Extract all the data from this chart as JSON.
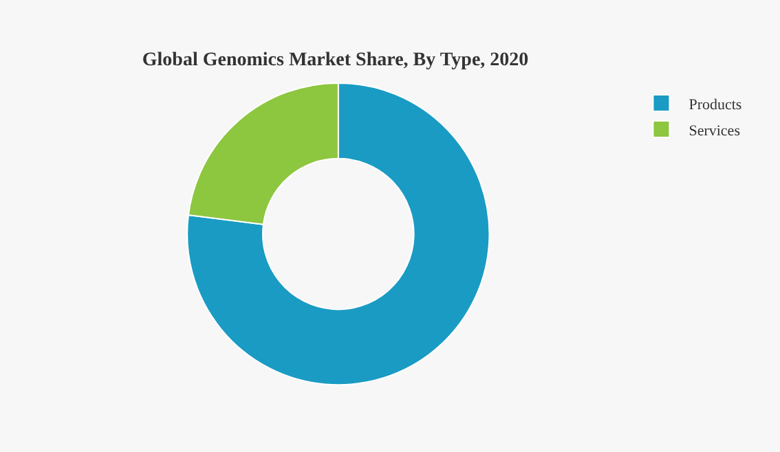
{
  "chart_data": {
    "type": "donut",
    "title": "Global Genomics Market Share, By Type, 2020",
    "categories": [
      "Products",
      "Services"
    ],
    "values": [
      77,
      23
    ],
    "colors": [
      "#1a9bc4",
      "#8dc63f"
    ],
    "legend": "top right"
  }
}
